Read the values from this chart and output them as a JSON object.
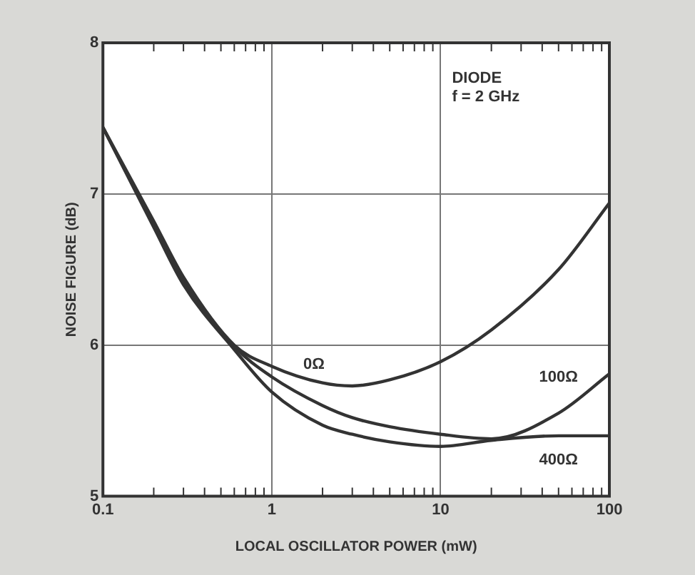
{
  "chart_data": {
    "type": "line",
    "xlabel": "LOCAL OSCILLATOR POWER (mW)",
    "ylabel": "NOISE FIGURE (dB)",
    "x": [
      0.1,
      0.2,
      0.3,
      0.6,
      1,
      2,
      3,
      5,
      10,
      20,
      50,
      100
    ],
    "series": [
      {
        "name": "0Ω",
        "color": "#333333",
        "values": [
          7.44,
          6.82,
          6.45,
          6.0,
          5.86,
          5.75,
          5.73,
          5.77,
          5.89,
          6.1,
          6.5,
          6.94
        ]
      },
      {
        "name": "100Ω",
        "color": "#333333",
        "values": [
          7.44,
          6.8,
          6.43,
          5.99,
          5.79,
          5.6,
          5.52,
          5.46,
          5.41,
          5.38,
          5.55,
          5.81
        ]
      },
      {
        "name": "400Ω",
        "color": "#333333",
        "values": [
          7.44,
          6.78,
          6.4,
          5.97,
          5.69,
          5.47,
          5.41,
          5.36,
          5.33,
          5.37,
          5.4,
          5.4
        ]
      }
    ],
    "log": "x",
    "xlim": [
      0.1,
      100
    ],
    "xticks": [
      0.1,
      1,
      10,
      100
    ],
    "ylim": [
      5,
      8
    ],
    "yticks": [
      5,
      6,
      7,
      8
    ],
    "grid": true,
    "legend": false,
    "marker": "none",
    "line_style": "solid",
    "annotations": [
      "DIODE",
      "f = 2 GHz"
    ]
  }
}
